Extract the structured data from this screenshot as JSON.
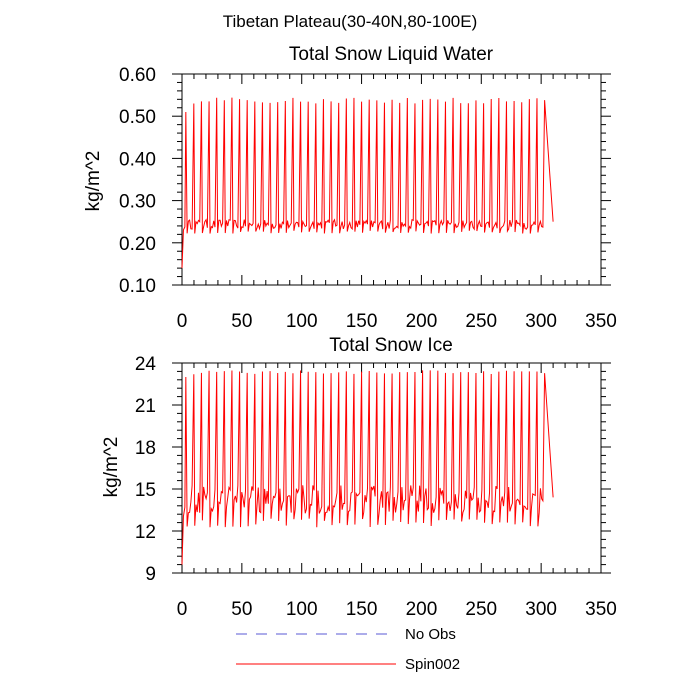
{
  "figure": {
    "title": "Tibetan Plateau(30-40N,80-100E)"
  },
  "legend": {
    "placement": "bottom-center",
    "items": [
      {
        "label": "No Obs",
        "color": "#5a5ad6",
        "style": "dashed"
      },
      {
        "label": "Spin002",
        "color": "#ff0000",
        "style": "solid"
      }
    ]
  },
  "chart_data": [
    {
      "type": "line",
      "title": "Total Snow Liquid Water",
      "ylabel": "kg/m^2",
      "xlabel": "",
      "xlim": [
        0,
        350
      ],
      "ylim": [
        0.1,
        0.6
      ],
      "xticks": [
        "0",
        "50",
        "100",
        "150",
        "200",
        "250",
        "300",
        "350"
      ],
      "yticks": [
        "0.10",
        "0.20",
        "0.30",
        "0.40",
        "0.50",
        "0.60"
      ],
      "grid": false,
      "series": [
        {
          "name": "Spin002",
          "color": "#ff0000",
          "start_value": 0.14,
          "first_peak": 0.51,
          "peak_range": [
            0.53,
            0.545
          ],
          "baseline_range": [
            0.22,
            0.255
          ],
          "cycle_period": 6.5,
          "n_cycles": 47,
          "x_range": [
            0,
            310
          ],
          "end_value": 0.25
        }
      ]
    },
    {
      "type": "line",
      "title": "Total Snow Ice",
      "ylabel": "kg/m^2",
      "xlabel": "",
      "xlim": [
        0,
        350
      ],
      "ylim": [
        9,
        24
      ],
      "xticks": [
        "0",
        "50",
        "100",
        "150",
        "200",
        "250",
        "300",
        "350"
      ],
      "yticks": [
        "9",
        "12",
        "15",
        "18",
        "21",
        "24"
      ],
      "grid": false,
      "series": [
        {
          "name": "Spin002",
          "color": "#ff0000",
          "start_value": 9.6,
          "first_peak": 23.0,
          "peak_range": [
            23.2,
            23.5
          ],
          "baseline_range": [
            12.1,
            15.3
          ],
          "cycle_period": 6.5,
          "n_cycles": 47,
          "x_range": [
            0,
            310
          ],
          "end_value": 14.4
        }
      ]
    }
  ]
}
